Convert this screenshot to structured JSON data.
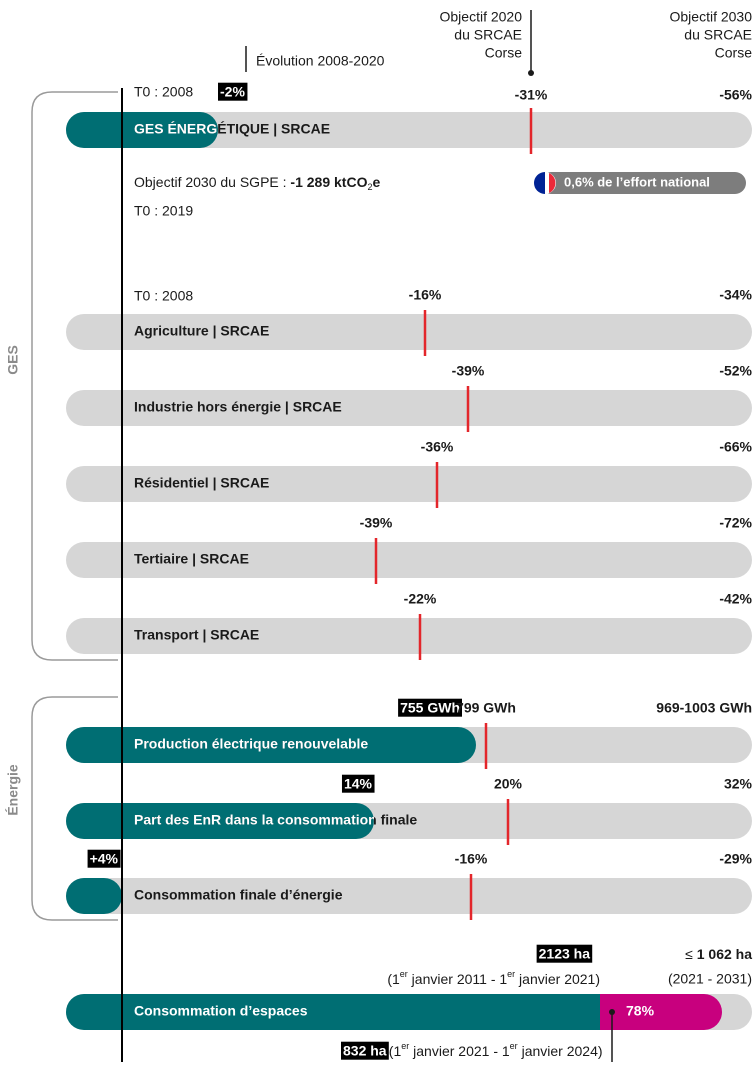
{
  "header": {
    "objectif_2020": [
      "Objectif 2020",
      "du SRCAE",
      "Corse"
    ],
    "objectif_2030": [
      "Objectif 2030",
      "du SRCAE",
      "Corse"
    ],
    "evolution": "Évolution 2008-2020"
  },
  "groups": {
    "ges": "GES",
    "energie": "Énergie"
  },
  "ges_energetique": {
    "t0": "T0 : 2008",
    "evolution": "-2%",
    "target_2020": "-31%",
    "target_2030": "-56%",
    "label": "GES ÉNERGÉTIQUE | SRCAE",
    "sgpe": [
      "Objectif 2030 du SGPE : ",
      "-1 289 ktCO",
      "2",
      "e"
    ],
    "t0_sgpe": "T0 : 2019",
    "effort": "0,6% de l’effort national"
  },
  "sectors": {
    "t0": "T0 : 2008",
    "rows": [
      {
        "label": "Agriculture | SRCAE",
        "target_2020": "-16%",
        "target_2030": "-34%"
      },
      {
        "label": "Industrie hors énergie | SRCAE",
        "target_2020": "-39%",
        "target_2030": "-52%"
      },
      {
        "label": "Résidentiel | SRCAE",
        "target_2020": "-36%",
        "target_2030": "-66%"
      },
      {
        "label": "Tertiaire | SRCAE",
        "target_2020": "-39%",
        "target_2030": "-72%"
      },
      {
        "label": "Transport | SRCAE",
        "target_2020": "-22%",
        "target_2030": "-42%"
      }
    ]
  },
  "energie": {
    "rows": [
      {
        "label": "Production électrique renouvelable",
        "current": "755 GWh",
        "target_2020": "799 GWh",
        "target_2030": "969-1003 GWh"
      },
      {
        "label": "Part des EnR dans la consommation finale",
        "current": "14%",
        "target_2020": "20%",
        "target_2030": "32%"
      },
      {
        "label": "Consommation finale d’énergie",
        "current": "+4%",
        "target_2020": "-16%",
        "target_2030": "-29%"
      }
    ]
  },
  "espaces": {
    "label": "Consommation d’espaces",
    "past": "2123 ha",
    "past_period": [
      "(1",
      "er",
      " janvier 2011 - 1",
      "er",
      " janvier 2021)"
    ],
    "target": [
      "≤ ",
      "1 062 ha"
    ],
    "target_period": "(2021 - 2031)",
    "share": "78%",
    "current": "832 ha",
    "current_period": [
      " (1",
      "er",
      " janvier 2021 - 1",
      "er",
      " janvier 2024)"
    ]
  }
}
